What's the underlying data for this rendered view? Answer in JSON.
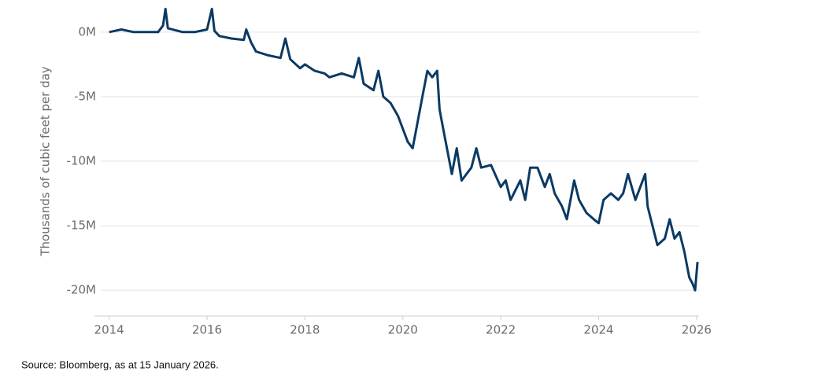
{
  "chart_data": {
    "type": "line",
    "y_label": "Thousands of cubic feet per day",
    "source": "Source: Bloomberg, as at 15 January 2026.",
    "color": "#0b3a64",
    "grid": true,
    "xlim": [
      2013.7,
      2026.05
    ],
    "xticks": [
      2014,
      2016,
      2018,
      2020,
      2022,
      2024,
      2026
    ],
    "ylim": [
      -22000000,
      2000000
    ],
    "yticks": [
      {
        "value": 0,
        "label": "0M"
      },
      {
        "value": -5000000,
        "label": "-5M"
      },
      {
        "value": -10000000,
        "label": "-10M"
      },
      {
        "value": -15000000,
        "label": "-15M"
      },
      {
        "value": -20000000,
        "label": "-20M"
      }
    ],
    "x": [
      2014.0,
      2014.125,
      2014.25,
      2014.5,
      2014.75,
      2015.0,
      2015.1,
      2015.15,
      2015.2,
      2015.5,
      2015.75,
      2016.0,
      2016.1,
      2016.15,
      2016.25,
      2016.5,
      2016.75,
      2016.8,
      2016.9,
      2017.0,
      2017.25,
      2017.5,
      2017.6,
      2017.7,
      2017.9,
      2018.0,
      2018.2,
      2018.4,
      2018.5,
      2018.75,
      2019.0,
      2019.1,
      2019.2,
      2019.4,
      2019.5,
      2019.6,
      2019.75,
      2019.9,
      2020.0,
      2020.1,
      2020.2,
      2020.3,
      2020.4,
      2020.5,
      2020.6,
      2020.7,
      2020.75,
      2020.85,
      2020.95,
      2021.0,
      2021.1,
      2021.2,
      2021.4,
      2021.5,
      2021.6,
      2021.8,
      2022.0,
      2022.1,
      2022.2,
      2022.4,
      2022.5,
      2022.6,
      2022.75,
      2022.9,
      2023.0,
      2023.1,
      2023.25,
      2023.35,
      2023.5,
      2023.6,
      2023.75,
      2023.9,
      2024.0,
      2024.1,
      2024.25,
      2024.4,
      2024.5,
      2024.6,
      2024.75,
      2024.85,
      2024.95,
      2025.0,
      2025.1,
      2025.2,
      2025.35,
      2025.45,
      2025.55,
      2025.65,
      2025.75,
      2025.85,
      2025.92,
      2025.97,
      2026.02
    ],
    "values": [
      0,
      100000,
      200000,
      0,
      0,
      0,
      500000,
      1800000,
      300000,
      0,
      0,
      200000,
      1800000,
      100000,
      -300000,
      -500000,
      -600000,
      200000,
      -800000,
      -1500000,
      -1800000,
      -2000000,
      -500000,
      -2100000,
      -2800000,
      -2500000,
      -3000000,
      -3200000,
      -3500000,
      -3200000,
      -3500000,
      -2000000,
      -4000000,
      -4500000,
      -3000000,
      -5000000,
      -5500000,
      -6500000,
      -7500000,
      -8500000,
      -9000000,
      -7000000,
      -5000000,
      -3000000,
      -3500000,
      -3000000,
      -6000000,
      -8000000,
      -10000000,
      -11000000,
      -9000000,
      -11500000,
      -10500000,
      -9000000,
      -10500000,
      -10300000,
      -12000000,
      -11500000,
      -13000000,
      -11500000,
      -13000000,
      -10500000,
      -10500000,
      -12000000,
      -11000000,
      -12500000,
      -13500000,
      -14500000,
      -11500000,
      -13000000,
      -14000000,
      -14500000,
      -14800000,
      -13000000,
      -12500000,
      -13000000,
      -12500000,
      -11000000,
      -13000000,
      -12000000,
      -11000000,
      -13500000,
      -15000000,
      -16500000,
      -16000000,
      -14500000,
      -16000000,
      -15500000,
      -17000000,
      -19000000,
      -19500000,
      -20000000,
      -17800000
    ]
  }
}
